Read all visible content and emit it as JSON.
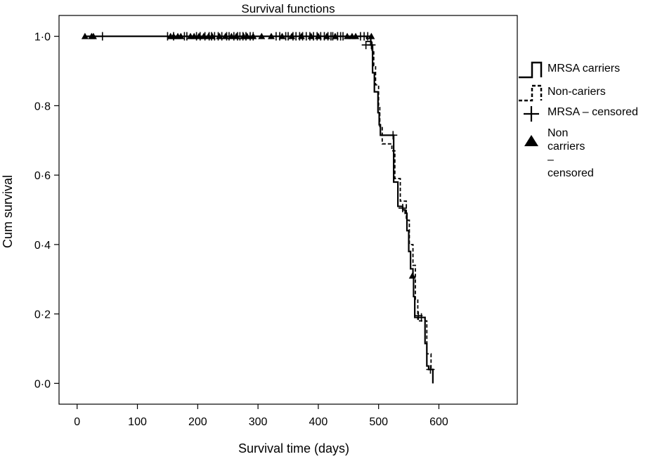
{
  "chart_data": {
    "type": "line",
    "title": "Survival functions",
    "xlabel": "Survival time (days)",
    "ylabel": "Cum survival",
    "xlim": [
      -30,
      730
    ],
    "ylim": [
      -0.06,
      1.06
    ],
    "xticks": [
      0,
      100,
      200,
      300,
      400,
      500,
      600
    ],
    "yticks": [
      0.0,
      0.2,
      0.4,
      0.6,
      0.8,
      1.0
    ],
    "xtick_labels": [
      "0",
      "100",
      "200",
      "300",
      "400",
      "500",
      "600"
    ],
    "ytick_labels": [
      "0·0",
      "0·2",
      "0·4",
      "0·6",
      "0·8",
      "1·0"
    ],
    "grid": false,
    "legend_position": "right",
    "series": [
      {
        "name": "MRSA carriers",
        "style": "solid",
        "steps": [
          [
            0,
            1.0
          ],
          [
            487,
            0.975
          ],
          [
            490,
            0.895
          ],
          [
            493,
            0.84
          ],
          [
            499,
            0.78
          ],
          [
            501,
            0.745
          ],
          [
            503,
            0.715
          ],
          [
            525,
            0.58
          ],
          [
            532,
            0.51
          ],
          [
            540,
            0.5
          ],
          [
            544,
            0.49
          ],
          [
            547,
            0.44
          ],
          [
            550,
            0.38
          ],
          [
            553,
            0.33
          ],
          [
            557,
            0.305
          ],
          [
            558,
            0.25
          ],
          [
            560,
            0.19
          ],
          [
            577,
            0.115
          ],
          [
            580,
            0.05
          ],
          [
            583,
            0.04
          ],
          [
            590,
            0.0
          ]
        ]
      },
      {
        "name": "Non-cariers",
        "style": "dashed",
        "steps": [
          [
            0,
            1.0
          ],
          [
            480,
            0.985
          ],
          [
            489,
            0.96
          ],
          [
            492,
            0.915
          ],
          [
            495,
            0.86
          ],
          [
            500,
            0.8
          ],
          [
            502,
            0.74
          ],
          [
            506,
            0.69
          ],
          [
            522,
            0.67
          ],
          [
            527,
            0.59
          ],
          [
            536,
            0.525
          ],
          [
            546,
            0.47
          ],
          [
            551,
            0.4
          ],
          [
            557,
            0.34
          ],
          [
            561,
            0.24
          ],
          [
            565,
            0.18
          ],
          [
            580,
            0.085
          ],
          [
            587,
            0.04
          ],
          [
            590,
            0.0
          ]
        ]
      }
    ],
    "censored": {
      "MRSA – censored": [
        42,
        150,
        160,
        178,
        182,
        198,
        204,
        212,
        219,
        223,
        228,
        234,
        240,
        248,
        252,
        260,
        266,
        270,
        275,
        280,
        287,
        292,
        330,
        336,
        346,
        350,
        358,
        363,
        369,
        374,
        380,
        386,
        392,
        398,
        404,
        410,
        416,
        421,
        424,
        432,
        437,
        441,
        470,
        476,
        482
      ],
      "Non carriers – censored": [
        13,
        24,
        27,
        155,
        160,
        167,
        172,
        188,
        194,
        202,
        210,
        218,
        224,
        236,
        246,
        256,
        264,
        276,
        282,
        292,
        306,
        322,
        340,
        356,
        372,
        388,
        400,
        414,
        428,
        448,
        456,
        462,
        488
      ],
      "late_mrsa_points": [
        [
          479,
          0.975
        ],
        [
          488,
          0.975
        ],
        [
          524,
          0.715
        ],
        [
          540,
          0.505
        ],
        [
          566,
          0.195
        ],
        [
          571,
          0.19
        ],
        [
          586,
          0.04
        ]
      ],
      "late_non_carrier_points": [
        [
          556,
          0.31
        ]
      ]
    },
    "legend": {
      "entries": [
        {
          "key": "mrsa",
          "label": "MRSA carriers",
          "marker": "solid-step"
        },
        {
          "key": "non",
          "label": "Non-cariers",
          "marker": "dashed-step"
        },
        {
          "key": "mrsa_c",
          "label": "MRSA – censored",
          "marker": "plus"
        },
        {
          "key": "non_c",
          "label": "Non carriers –\ncensored",
          "marker": "triangle"
        }
      ]
    }
  }
}
